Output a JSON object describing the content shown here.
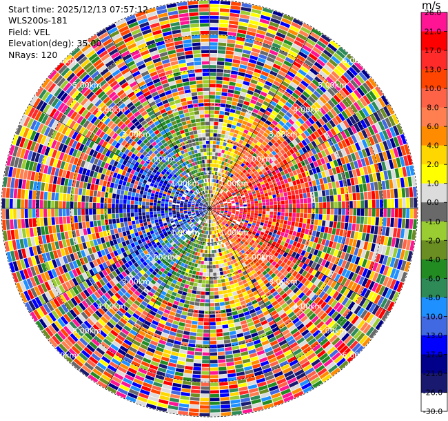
{
  "info": {
    "start_time": "Start time: 2025/12/13 07:57:12",
    "site": "WLS200s-181",
    "field": "Field: VEL",
    "elevation": "Elevation(deg): 35.00",
    "nrays": "NRays: 120"
  },
  "colorbar": {
    "unit": "m/s",
    "ticks": [
      "26.0",
      "21.0",
      "17.0",
      "13.0",
      "10.0",
      "8.0",
      "6.0",
      "4.0",
      "2.0",
      "1.0",
      "0.0",
      "-1.0",
      "-2.0",
      "-4.0",
      "-6.0",
      "-8.0",
      "-10.0",
      "-13.0",
      "-17.0",
      "-21.0",
      "-26.0",
      "-30.0"
    ],
    "colors": [
      "#ff1493",
      "#ff0000",
      "#ff2a2a",
      "#ff4500",
      "#ff6347",
      "#ff7f50",
      "#ff8c00",
      "#ffd700",
      "#ffff00",
      "#dcdcdc",
      "#696969",
      "#9acd32",
      "#6b8e23",
      "#228b22",
      "#2e8b57",
      "#1e90ff",
      "#4169e1",
      "#0000ff",
      "#00008b",
      "#191970"
    ]
  },
  "chart_data": {
    "type": "heatmap",
    "projection": "polar-ppi",
    "field": "VEL",
    "unit": "m/s",
    "nrays": 120,
    "elevation_deg": 35.0,
    "max_range_km": 6.0,
    "range_ring_labels": [
      "1.00km",
      "2.00km",
      "3.00km",
      "4.00km",
      "5.00km",
      "6.00km"
    ],
    "value_range": [
      -30.0,
      26.0
    ]
  }
}
